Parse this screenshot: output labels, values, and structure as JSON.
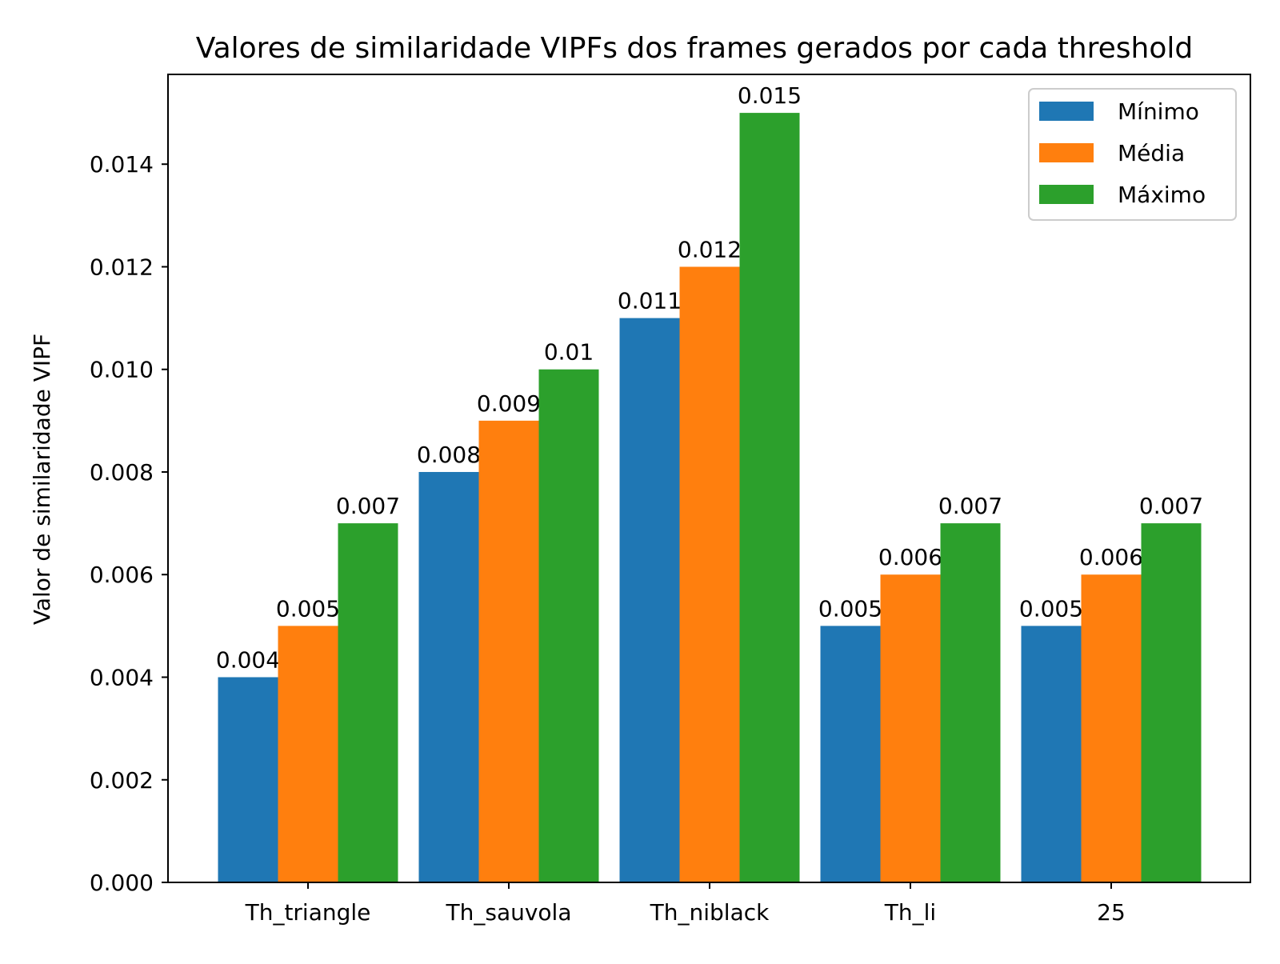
{
  "chart_data": {
    "type": "bar",
    "title": "Valores de similaridade VIPFs dos frames gerados por cada threshold",
    "xlabel": "",
    "ylabel": "Valor de similaridade VIPF",
    "categories": [
      "Th_triangle",
      "Th_sauvola",
      "Th_niblack",
      "Th_li",
      "25"
    ],
    "series": [
      {
        "name": "Mínimo",
        "color": "#1f77b4",
        "values": [
          0.004,
          0.008,
          0.011,
          0.005,
          0.005
        ],
        "labels": [
          "0.004",
          "0.008",
          "0.011",
          "0.005",
          "0.005"
        ]
      },
      {
        "name": "Média",
        "color": "#ff7f0e",
        "values": [
          0.005,
          0.009,
          0.012,
          0.006,
          0.006
        ],
        "labels": [
          "0.005",
          "0.009",
          "0.012",
          "0.006",
          "0.006"
        ]
      },
      {
        "name": "Máximo",
        "color": "#2ca02c",
        "values": [
          0.007,
          0.01,
          0.015,
          0.007,
          0.007
        ],
        "labels": [
          "0.007",
          "0.01",
          "0.015",
          "0.007",
          "0.007"
        ]
      }
    ],
    "ylim": [
      0,
      0.01575
    ],
    "yticks": [
      "0.000",
      "0.002",
      "0.004",
      "0.006",
      "0.008",
      "0.010",
      "0.012",
      "0.014"
    ],
    "ytick_values": [
      0,
      0.002,
      0.004,
      0.006,
      0.008,
      0.01,
      0.012,
      0.014
    ],
    "legend_position": "top-right",
    "grid": false
  }
}
